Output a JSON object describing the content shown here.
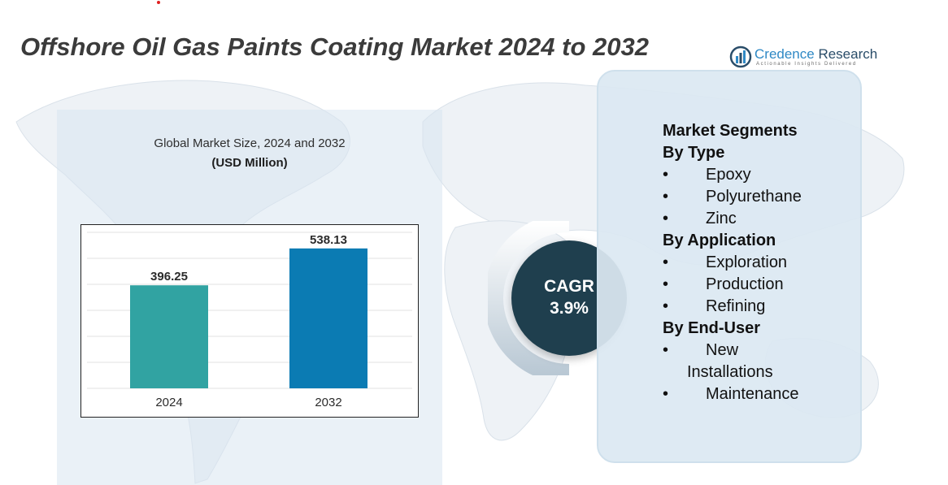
{
  "title": "Offshore Oil Gas Paints Coating Market 2024 to 2032",
  "logo": {
    "name_part1": "Credence",
    "name_part2": " Research",
    "tagline": "Actionable Insights Delivered"
  },
  "chart_caption": "Global Market Size, 2024 and 2032",
  "chart_unit": "(USD Million)",
  "chart_data": {
    "type": "bar",
    "categories": [
      "2024",
      "2032"
    ],
    "values": [
      396.25,
      538.13
    ],
    "value_labels": [
      "396.25",
      "538.13"
    ],
    "colors": [
      "#31a3a2",
      "#0b7bb3"
    ],
    "ylim": [
      0,
      600
    ],
    "grid": true,
    "title": "",
    "xlabel": "",
    "ylabel": ""
  },
  "cagr": {
    "label": "CAGR",
    "value": "3.9%"
  },
  "segments": {
    "heading": "Market Segments",
    "groups": [
      {
        "title": "By Type",
        "items": [
          "Epoxy",
          "Polyurethane",
          "Zinc"
        ]
      },
      {
        "title": "By Application",
        "items": [
          "Exploration",
          "Production",
          "Refining"
        ]
      },
      {
        "title": "By End-User",
        "items": [
          "New Installations",
          "Maintenance"
        ]
      }
    ]
  },
  "colors": {
    "title": "#3b3b3b",
    "cagr_circle": "#1f3f4e",
    "panel_bg": "#dbe8f2",
    "bar_2024": "#31a3a2",
    "bar_2032": "#0b7bb3"
  }
}
